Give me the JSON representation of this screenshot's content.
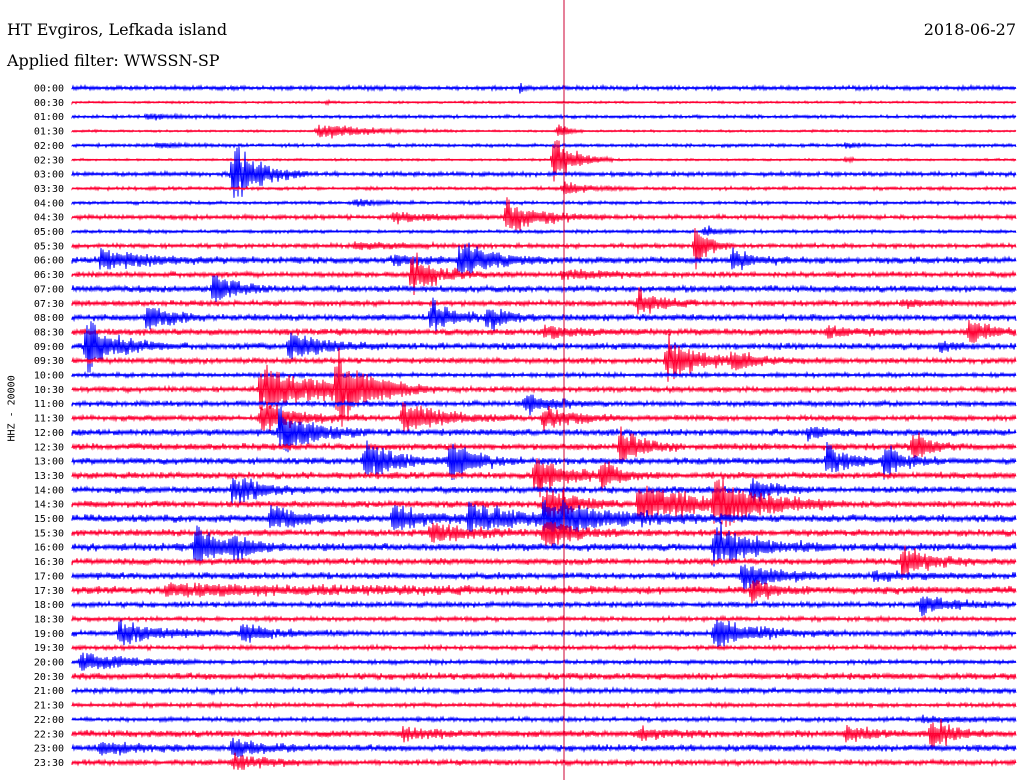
{
  "header": {
    "station": "HT Evgiros, Lefkada island",
    "filter": "Applied filter: WWSSN-SP",
    "date": "2018-06-27"
  },
  "chart_data": {
    "type": "line",
    "title": "HT Evgiros, Lefkada island",
    "subtitle": "Applied filter: WWSSN-SP",
    "date": "2018-06-27",
    "ylabel": "HHZ - 20000",
    "row_labels": [
      "00:00",
      "00:30",
      "01:00",
      "01:30",
      "02:00",
      "02:30",
      "03:00",
      "03:30",
      "04:00",
      "04:30",
      "05:00",
      "05:30",
      "06:00",
      "06:30",
      "07:00",
      "07:30",
      "08:00",
      "08:30",
      "09:00",
      "09:30",
      "10:00",
      "10:30",
      "11:00",
      "11:30",
      "12:00",
      "12:30",
      "13:00",
      "13:30",
      "14:00",
      "14:30",
      "15:00",
      "15:30",
      "16:00",
      "16:30",
      "17:00",
      "17:30",
      "18:00",
      "18:30",
      "19:00",
      "19:30",
      "20:00",
      "20:30",
      "21:00",
      "21:30",
      "22:00",
      "22:30",
      "23:00",
      "23:30"
    ],
    "series_colors": {
      "even": "#0000ff",
      "odd": "#ff0033"
    },
    "marker_line_color": "#cc0033",
    "events": [
      {
        "row": 0,
        "pos": 0.475,
        "amp": 4,
        "width": 4
      },
      {
        "row": 1,
        "pos": 0.27,
        "amp": 2,
        "width": 3
      },
      {
        "row": 2,
        "pos": 0.08,
        "amp": 3,
        "width": 30
      },
      {
        "row": 3,
        "pos": 0.26,
        "amp": 10,
        "width": 45
      },
      {
        "row": 3,
        "pos": 0.515,
        "amp": 12,
        "width": 8
      },
      {
        "row": 4,
        "pos": 0.09,
        "amp": 3,
        "width": 25
      },
      {
        "row": 4,
        "pos": 0.82,
        "amp": 4,
        "width": 8
      },
      {
        "row": 5,
        "pos": 0.51,
        "amp": 30,
        "width": 20
      },
      {
        "row": 5,
        "pos": 0.82,
        "amp": 4,
        "width": 6
      },
      {
        "row": 6,
        "pos": 0.17,
        "amp": 40,
        "width": 25
      },
      {
        "row": 7,
        "pos": 0.52,
        "amp": 8,
        "width": 25
      },
      {
        "row": 8,
        "pos": 0.3,
        "amp": 5,
        "width": 20
      },
      {
        "row": 9,
        "pos": 0.34,
        "amp": 6,
        "width": 40
      },
      {
        "row": 9,
        "pos": 0.46,
        "amp": 20,
        "width": 35
      },
      {
        "row": 10,
        "pos": 0.67,
        "amp": 8,
        "width": 12
      },
      {
        "row": 11,
        "pos": 0.3,
        "amp": 5,
        "width": 40
      },
      {
        "row": 11,
        "pos": 0.66,
        "amp": 30,
        "width": 12
      },
      {
        "row": 12,
        "pos": 0.03,
        "amp": 12,
        "width": 50
      },
      {
        "row": 12,
        "pos": 0.34,
        "amp": 6,
        "width": 40
      },
      {
        "row": 12,
        "pos": 0.41,
        "amp": 20,
        "width": 35
      },
      {
        "row": 12,
        "pos": 0.7,
        "amp": 14,
        "width": 20
      },
      {
        "row": 13,
        "pos": 0.36,
        "amp": 25,
        "width": 25
      },
      {
        "row": 13,
        "pos": 0.52,
        "amp": 6,
        "width": 40
      },
      {
        "row": 14,
        "pos": 0.15,
        "amp": 20,
        "width": 20
      },
      {
        "row": 15,
        "pos": 0.6,
        "amp": 18,
        "width": 20
      },
      {
        "row": 15,
        "pos": 0.88,
        "amp": 4,
        "width": 40
      },
      {
        "row": 16,
        "pos": 0.08,
        "amp": 20,
        "width": 20
      },
      {
        "row": 16,
        "pos": 0.38,
        "amp": 22,
        "width": 20
      },
      {
        "row": 16,
        "pos": 0.44,
        "amp": 15,
        "width": 20
      },
      {
        "row": 17,
        "pos": 0.5,
        "amp": 6,
        "width": 40
      },
      {
        "row": 17,
        "pos": 0.8,
        "amp": 6,
        "width": 30
      },
      {
        "row": 17,
        "pos": 0.95,
        "amp": 15,
        "width": 20
      },
      {
        "row": 18,
        "pos": 0.015,
        "amp": 30,
        "width": 30
      },
      {
        "row": 18,
        "pos": 0.23,
        "amp": 20,
        "width": 30
      },
      {
        "row": 18,
        "pos": 0.92,
        "amp": 6,
        "width": 15
      },
      {
        "row": 19,
        "pos": 0.63,
        "amp": 30,
        "width": 30
      },
      {
        "row": 19,
        "pos": 0.7,
        "amp": 10,
        "width": 30
      },
      {
        "row": 21,
        "pos": 0.2,
        "amp": 30,
        "width": 60
      },
      {
        "row": 21,
        "pos": 0.28,
        "amp": 40,
        "width": 30
      },
      {
        "row": 22,
        "pos": 0.48,
        "amp": 15,
        "width": 25
      },
      {
        "row": 23,
        "pos": 0.2,
        "amp": 20,
        "width": 35
      },
      {
        "row": 23,
        "pos": 0.35,
        "amp": 20,
        "width": 40
      },
      {
        "row": 23,
        "pos": 0.5,
        "amp": 14,
        "width": 30
      },
      {
        "row": 24,
        "pos": 0.22,
        "amp": 30,
        "width": 30
      },
      {
        "row": 24,
        "pos": 0.78,
        "amp": 8,
        "width": 20
      },
      {
        "row": 25,
        "pos": 0.58,
        "amp": 25,
        "width": 20
      },
      {
        "row": 25,
        "pos": 0.89,
        "amp": 22,
        "width": 15
      },
      {
        "row": 26,
        "pos": 0.31,
        "amp": 25,
        "width": 30
      },
      {
        "row": 26,
        "pos": 0.4,
        "amp": 25,
        "width": 25
      },
      {
        "row": 26,
        "pos": 0.8,
        "amp": 22,
        "width": 20
      },
      {
        "row": 26,
        "pos": 0.86,
        "amp": 20,
        "width": 20
      },
      {
        "row": 27,
        "pos": 0.49,
        "amp": 30,
        "width": 25
      },
      {
        "row": 27,
        "pos": 0.56,
        "amp": 18,
        "width": 20
      },
      {
        "row": 28,
        "pos": 0.17,
        "amp": 22,
        "width": 25
      },
      {
        "row": 28,
        "pos": 0.72,
        "amp": 15,
        "width": 20
      },
      {
        "row": 29,
        "pos": 0.5,
        "amp": 25,
        "width": 25
      },
      {
        "row": 29,
        "pos": 0.6,
        "amp": 22,
        "width": 70
      },
      {
        "row": 29,
        "pos": 0.68,
        "amp": 28,
        "width": 40
      },
      {
        "row": 30,
        "pos": 0.21,
        "amp": 18,
        "width": 25
      },
      {
        "row": 30,
        "pos": 0.34,
        "amp": 18,
        "width": 30
      },
      {
        "row": 30,
        "pos": 0.42,
        "amp": 18,
        "width": 50
      },
      {
        "row": 30,
        "pos": 0.5,
        "amp": 20,
        "width": 70
      },
      {
        "row": 31,
        "pos": 0.38,
        "amp": 12,
        "width": 40
      },
      {
        "row": 31,
        "pos": 0.5,
        "amp": 18,
        "width": 30
      },
      {
        "row": 32,
        "pos": 0.13,
        "amp": 25,
        "width": 25
      },
      {
        "row": 32,
        "pos": 0.17,
        "amp": 15,
        "width": 20
      },
      {
        "row": 32,
        "pos": 0.68,
        "amp": 25,
        "width": 40
      },
      {
        "row": 33,
        "pos": 0.88,
        "amp": 22,
        "width": 25
      },
      {
        "row": 34,
        "pos": 0.71,
        "amp": 20,
        "width": 30
      },
      {
        "row": 34,
        "pos": 0.85,
        "amp": 6,
        "width": 30
      },
      {
        "row": 35,
        "pos": 0.1,
        "amp": 6,
        "width": 200
      },
      {
        "row": 35,
        "pos": 0.72,
        "amp": 15,
        "width": 20
      },
      {
        "row": 36,
        "pos": 0.9,
        "amp": 15,
        "width": 25
      },
      {
        "row": 38,
        "pos": 0.05,
        "amp": 15,
        "width": 40
      },
      {
        "row": 38,
        "pos": 0.18,
        "amp": 12,
        "width": 30
      },
      {
        "row": 38,
        "pos": 0.68,
        "amp": 18,
        "width": 40
      },
      {
        "row": 40,
        "pos": 0.01,
        "amp": 14,
        "width": 40
      },
      {
        "row": 44,
        "pos": 0.9,
        "amp": 4,
        "width": 40
      },
      {
        "row": 45,
        "pos": 0.35,
        "amp": 8,
        "width": 30
      },
      {
        "row": 45,
        "pos": 0.6,
        "amp": 8,
        "width": 30
      },
      {
        "row": 45,
        "pos": 0.82,
        "amp": 8,
        "width": 30
      },
      {
        "row": 45,
        "pos": 0.91,
        "amp": 20,
        "width": 20
      },
      {
        "row": 46,
        "pos": 0.03,
        "amp": 8,
        "width": 40
      },
      {
        "row": 46,
        "pos": 0.17,
        "amp": 12,
        "width": 30
      },
      {
        "row": 47,
        "pos": 0.17,
        "amp": 10,
        "width": 30
      }
    ],
    "noise": [
      2,
      1,
      1.5,
      1,
      1.5,
      1,
      2,
      1.5,
      1.5,
      2,
      1.5,
      2,
      3,
      2.5,
      3,
      2.5,
      3,
      3,
      3,
      2.5,
      2,
      2.5,
      2.5,
      2.5,
      3,
      3,
      3,
      3,
      3,
      3,
      3.5,
      3,
      3.5,
      3,
      3,
      3.5,
      2.5,
      2,
      2.5,
      2,
      2,
      3,
      2.5,
      2,
      2,
      3,
      3,
      2.5
    ]
  }
}
